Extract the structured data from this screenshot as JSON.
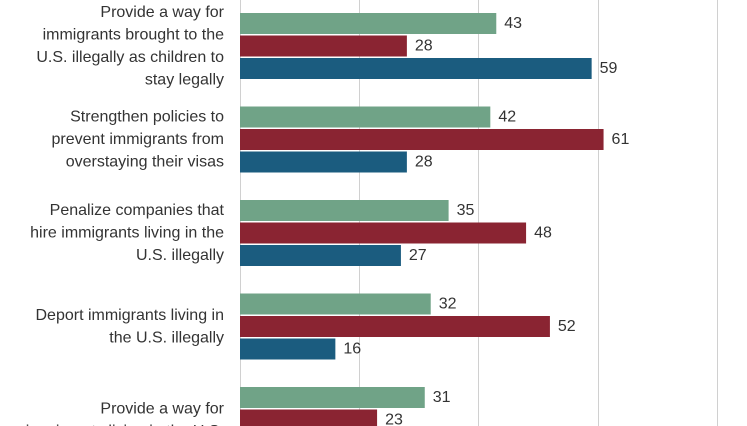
{
  "chart_data": {
    "type": "bar",
    "orientation": "horizontal",
    "grid": true,
    "xlim": [
      0,
      100
    ],
    "categories": [
      [
        "Provide a way for",
        "immigrants brought to the",
        "U.S. illegally as children to",
        "stay legally"
      ],
      [
        "Strengthen policies to",
        "prevent immigrants from",
        "overstaying their visas"
      ],
      [
        "Penalize companies that",
        "hire immigrants living in the",
        "U.S. illegally"
      ],
      [
        "Deport immigrants living in",
        "the U.S. illegally"
      ],
      [
        "Provide a way for",
        "immigrants living in the U.S."
      ]
    ],
    "series": [
      {
        "color": "#70a387",
        "values": [
          43,
          42,
          35,
          32,
          31
        ]
      },
      {
        "color": "#8a2432",
        "values": [
          28,
          61,
          48,
          52,
          23
        ]
      },
      {
        "color": "#1b5c7f",
        "values": [
          59,
          28,
          27,
          16,
          null
        ]
      }
    ]
  }
}
